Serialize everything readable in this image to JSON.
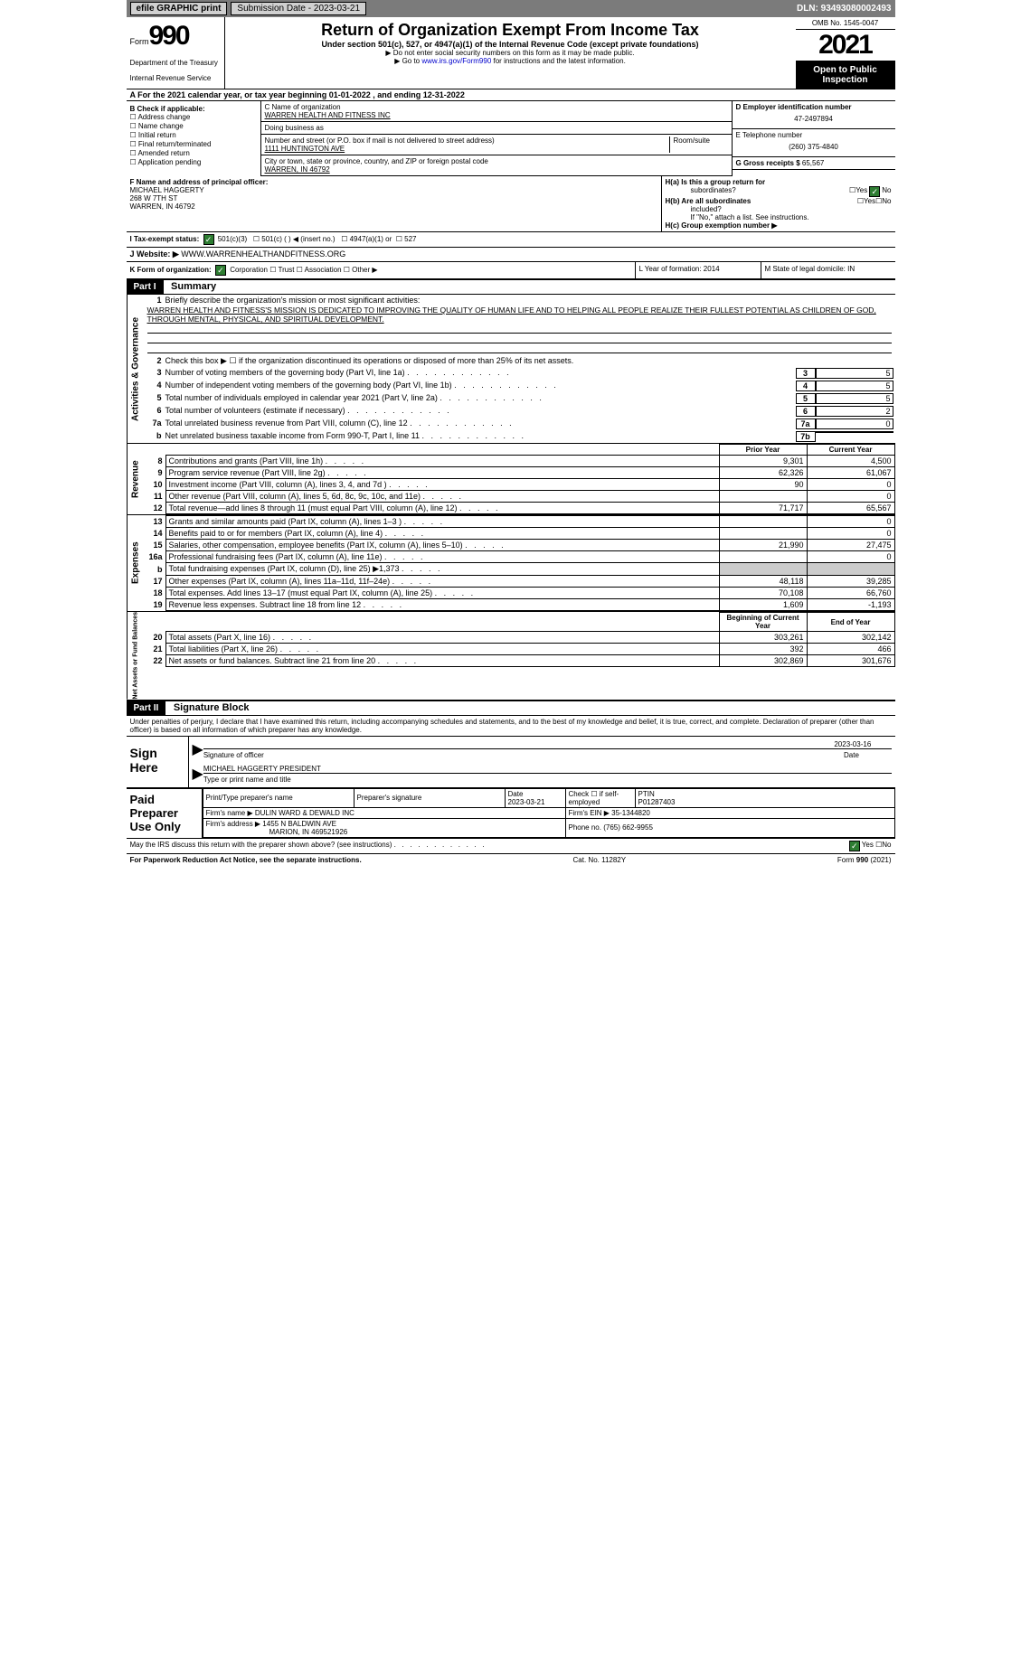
{
  "topbar": {
    "efile": "efile GRAPHIC print",
    "submission": "Submission Date - 2023-03-21",
    "dln": "DLN: 93493080002493"
  },
  "header": {
    "form": "Form",
    "formnum": "990",
    "dept": "Department of the Treasury",
    "irs": "Internal Revenue Service",
    "title": "Return of Organization Exempt From Income Tax",
    "sub": "Under section 501(c), 527, or 4947(a)(1) of the Internal Revenue Code (except private foundations)",
    "note1": "▶ Do not enter social security numbers on this form as it may be made public.",
    "note2": "▶ Go to ",
    "note2link": "www.irs.gov/Form990",
    "note2b": " for instructions and the latest information.",
    "omb": "OMB No. 1545-0047",
    "year": "2021",
    "insp1": "Open to Public",
    "insp2": "Inspection"
  },
  "A": {
    "text": "A  For the 2021 calendar year, or tax year beginning 01-01-2022    , and ending 12-31-2022"
  },
  "B": {
    "title": "B Check if applicable:",
    "opts": [
      "Address change",
      "Name change",
      "Initial return",
      "Final return/terminated",
      "Amended return",
      "Application pending"
    ]
  },
  "C": {
    "namelbl": "C Name of organization",
    "name": "WARREN HEALTH AND FITNESS INC",
    "dbalbl": "Doing business as",
    "dba": "",
    "addrlbl": "Number and street (or P.O. box if mail is not delivered to street address)",
    "roomlbl": "Room/suite",
    "addr": "1111 HUNTINGTON AVE",
    "citylbl": "City or town, state or province, country, and ZIP or foreign postal code",
    "city": "WARREN, IN  46792"
  },
  "D": {
    "lbl": "D Employer identification number",
    "val": "47-2497894"
  },
  "E": {
    "lbl": "E Telephone number",
    "val": "(260) 375-4840"
  },
  "G": {
    "lbl": "G Gross receipts $",
    "val": "65,567"
  },
  "F": {
    "lbl": "F  Name and address of principal officer:",
    "name": "MICHAEL HAGGERTY",
    "addr": "268 W 7TH ST",
    "city": "WARREN, IN  46792"
  },
  "H": {
    "a": "H(a)  Is this a group return for",
    "a2": "subordinates?",
    "yes": "Yes",
    "no": "No",
    "b": "H(b)  Are all subordinates",
    "b2": "included?",
    "bnote": "If \"No,\" attach a list. See instructions.",
    "c": "H(c)  Group exemption number ▶"
  },
  "I": {
    "lbl": "I     Tax-exempt status:",
    "o1": "501(c)(3)",
    "o2": "501(c) (  ) ◀ (insert no.)",
    "o3": "4947(a)(1) or",
    "o4": "527"
  },
  "J": {
    "lbl": "J    Website: ▶",
    "val": "  WWW.WARRENHEALTHANDFITNESS.ORG"
  },
  "K": {
    "lbl": "K Form of organization:",
    "o1": "Corporation",
    "o2": "Trust",
    "o3": "Association",
    "o4": "Other ▶"
  },
  "L": {
    "lbl": "L Year of formation: 2014"
  },
  "M": {
    "lbl": "M State of legal domicile: IN"
  },
  "part1": {
    "hdr": "Part I",
    "title": "Summary"
  },
  "summary": {
    "q1": "Briefly describe the organization's mission or most significant activities:",
    "mission": "WARREN HEALTH AND FITNESS'S MISSION IS DEDICATED TO IMPROVING THE QUALITY OF HUMAN LIFE AND TO HELPING ALL PEOPLE REALIZE THEIR FULLEST POTENTIAL AS CHILDREN OF GOD, THROUGH MENTAL, PHYSICAL, AND SPIRITUAL DEVELOPMENT.",
    "q2": "Check this box ▶ ☐  if the organization discontinued its operations or disposed of more than 25% of its net assets.",
    "lines": [
      {
        "n": "3",
        "t": "Number of voting members of the governing body (Part VI, line 1a)",
        "bn": "3",
        "bv": "5"
      },
      {
        "n": "4",
        "t": "Number of independent voting members of the governing body (Part VI, line 1b)",
        "bn": "4",
        "bv": "5"
      },
      {
        "n": "5",
        "t": "Total number of individuals employed in calendar year 2021 (Part V, line 2a)",
        "bn": "5",
        "bv": "5"
      },
      {
        "n": "6",
        "t": "Total number of volunteers (estimate if necessary)",
        "bn": "6",
        "bv": "2"
      },
      {
        "n": "7a",
        "t": "Total unrelated business revenue from Part VIII, column (C), line 12",
        "bn": "7a",
        "bv": "0"
      },
      {
        "n": "b",
        "t": "Net unrelated business taxable income from Form 990-T, Part I, line 11",
        "bn": "7b",
        "bv": ""
      }
    ]
  },
  "revhdr": {
    "prior": "Prior Year",
    "curr": "Current Year"
  },
  "revenue": [
    {
      "n": "8",
      "t": "Contributions and grants (Part VIII, line 1h)",
      "p": "9,301",
      "c": "4,500"
    },
    {
      "n": "9",
      "t": "Program service revenue (Part VIII, line 2g)",
      "p": "62,326",
      "c": "61,067"
    },
    {
      "n": "10",
      "t": "Investment income (Part VIII, column (A), lines 3, 4, and 7d )",
      "p": "90",
      "c": "0"
    },
    {
      "n": "11",
      "t": "Other revenue (Part VIII, column (A), lines 5, 6d, 8c, 9c, 10c, and 11e)",
      "p": "",
      "c": "0"
    },
    {
      "n": "12",
      "t": "Total revenue—add lines 8 through 11 (must equal Part VIII, column (A), line 12)",
      "p": "71,717",
      "c": "65,567"
    }
  ],
  "expenses": [
    {
      "n": "13",
      "t": "Grants and similar amounts paid (Part IX, column (A), lines 1–3 )",
      "p": "",
      "c": "0"
    },
    {
      "n": "14",
      "t": "Benefits paid to or for members (Part IX, column (A), line 4)",
      "p": "",
      "c": "0"
    },
    {
      "n": "15",
      "t": "Salaries, other compensation, employee benefits (Part IX, column (A), lines 5–10)",
      "p": "21,990",
      "c": "27,475"
    },
    {
      "n": "16a",
      "t": "Professional fundraising fees (Part IX, column (A), line 11e)",
      "p": "",
      "c": "0"
    },
    {
      "n": "b",
      "t": "Total fundraising expenses (Part IX, column (D), line 25) ▶1,373",
      "p": "grey",
      "c": "grey"
    },
    {
      "n": "17",
      "t": "Other expenses (Part IX, column (A), lines 11a–11d, 11f–24e)",
      "p": "48,118",
      "c": "39,285"
    },
    {
      "n": "18",
      "t": "Total expenses. Add lines 13–17 (must equal Part IX, column (A), line 25)",
      "p": "70,108",
      "c": "66,760"
    },
    {
      "n": "19",
      "t": "Revenue less expenses. Subtract line 18 from line 12",
      "p": "1,609",
      "c": "-1,193"
    }
  ],
  "nethdr": {
    "prior": "Beginning of Current Year",
    "curr": "End of Year"
  },
  "net": [
    {
      "n": "20",
      "t": "Total assets (Part X, line 16)",
      "p": "303,261",
      "c": "302,142"
    },
    {
      "n": "21",
      "t": "Total liabilities (Part X, line 26)",
      "p": "392",
      "c": "466"
    },
    {
      "n": "22",
      "t": "Net assets or fund balances. Subtract line 21 from line 20",
      "p": "302,869",
      "c": "301,676"
    }
  ],
  "part2": {
    "hdr": "Part II",
    "title": "Signature Block"
  },
  "declare": "Under penalties of perjury, I declare that I have examined this return, including accompanying schedules and statements, and to the best of my knowledge and belief, it is true, correct, and complete. Declaration of preparer (other than officer) is based on all information of which preparer has any knowledge.",
  "sign": {
    "lbl": "Sign Here",
    "siglbl": "Signature of officer",
    "datelbl": "Date",
    "date": "2023-03-16",
    "name": "MICHAEL HAGGERTY PRESIDENT",
    "namelbl": "Type or print name and title"
  },
  "paid": {
    "lbl": "Paid Preparer Use Only",
    "h1": "Print/Type preparer's name",
    "h2": "Preparer's signature",
    "h3": "Date",
    "h3v": "2023-03-21",
    "h4": "Check ☐ if self-employed",
    "h5": "PTIN",
    "h5v": "P01287403",
    "firm": "Firm's name     ▶ DULIN WARD & DEWALD INC",
    "ein": "Firm's EIN ▶ 35-1344820",
    "addr": "Firm's address ▶ 1455 N BALDWIN AVE",
    "addr2": "MARION, IN  469521926",
    "phone": "Phone no. (765) 662-9955"
  },
  "may": {
    "txt": "May the IRS discuss this return with the preparer shown above? (see instructions)",
    "yes": "Yes",
    "no": "No"
  },
  "foot": {
    "l": "For Paperwork Reduction Act Notice, see the separate instructions.",
    "m": "Cat. No. 11282Y",
    "r": "Form 990 (2021)"
  },
  "sidelabels": {
    "ag": "Activities & Governance",
    "rev": "Revenue",
    "exp": "Expenses",
    "net": "Net Assets or Fund Balances"
  }
}
